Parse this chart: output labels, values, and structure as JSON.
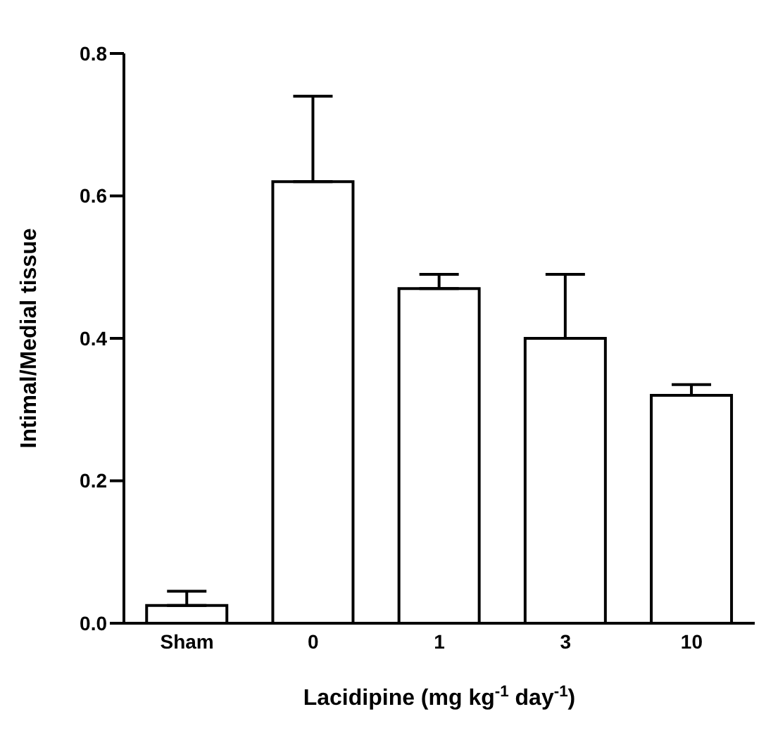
{
  "chart_data": {
    "type": "bar",
    "xlabel": "Lacidipine (mg kg$^{-1}$ day$^{-1}$)",
    "ylabel": "Intimal/Medial tissue",
    "categories": [
      "Sham",
      "0",
      "1",
      "3",
      "10"
    ],
    "values": [
      0.025,
      0.62,
      0.47,
      0.4,
      0.32
    ],
    "errors": [
      [
        0.025,
        0.045
      ],
      [
        0.62,
        0.74
      ],
      [
        0.47,
        0.49
      ],
      [
        0.4,
        0.49
      ],
      [
        0.32,
        0.335
      ]
    ],
    "color": "#ffffff",
    "ylim": [
      0,
      0.8
    ],
    "yticks": [
      {
        "value": 0,
        "label": "0.0"
      },
      {
        "value": 0.2,
        "label": "0.2"
      },
      {
        "value": 0.4,
        "label": "0.4"
      },
      {
        "value": 0.6,
        "label": "0.6"
      },
      {
        "value": 0.8,
        "label": "0.8"
      }
    ],
    "grid": false,
    "legend": false
  }
}
